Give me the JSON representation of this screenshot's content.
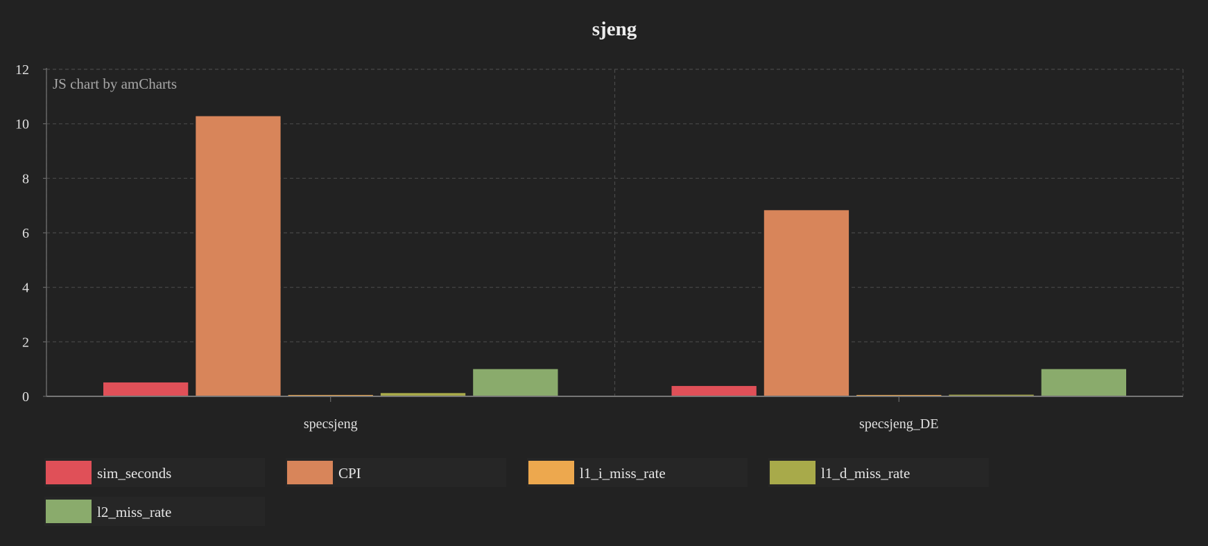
{
  "chart_data": {
    "type": "bar",
    "title": "sjeng",
    "credit": "JS chart by amCharts",
    "xlabel": "",
    "ylabel": "",
    "ylim": [
      0,
      12
    ],
    "yticks": [
      "0",
      "2",
      "4",
      "6",
      "8",
      "10",
      "12"
    ],
    "grid": true,
    "legend_position": "bottom",
    "categories": [
      "specsjeng",
      "specsjeng_DE"
    ],
    "series": [
      {
        "name": "sim_seconds",
        "color": "#e05058",
        "values": [
          0.51,
          0.38
        ]
      },
      {
        "name": "CPI",
        "color": "#d8855a",
        "values": [
          10.28,
          6.83
        ]
      },
      {
        "name": "l1_i_miss_rate",
        "color": "#eda84e",
        "values": [
          0.0,
          0.0
        ]
      },
      {
        "name": "l1_d_miss_rate",
        "color": "#a8aa4a",
        "values": [
          0.12,
          0.06
        ]
      },
      {
        "name": "l2_miss_rate",
        "color": "#8aab6c",
        "values": [
          1.0,
          1.0
        ]
      }
    ]
  }
}
